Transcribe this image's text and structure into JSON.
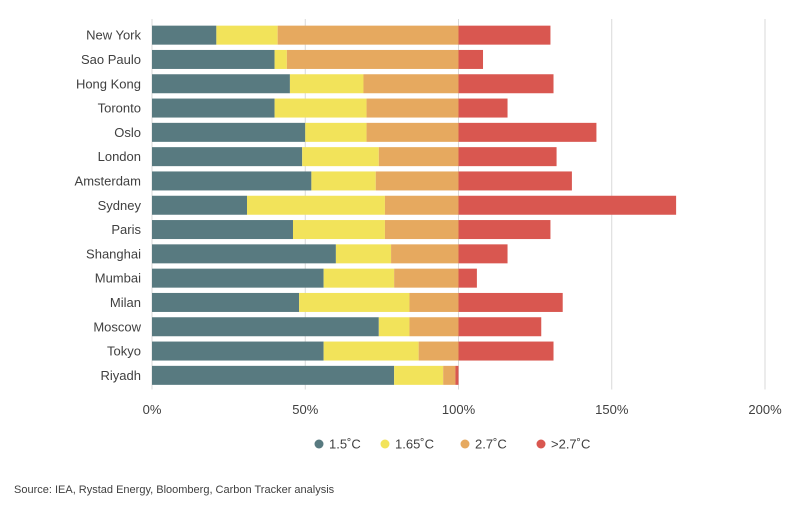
{
  "chart_data": {
    "type": "bar",
    "orientation": "horizontal",
    "stacked": true,
    "categories": [
      "New York",
      "Sao Paulo",
      "Hong Kong",
      "Toronto",
      "Oslo",
      "London",
      "Amsterdam",
      "Sydney",
      "Paris",
      "Shanghai",
      "Mumbai",
      "Milan",
      "Moscow",
      "Tokyo",
      "Riyadh"
    ],
    "series": [
      {
        "name": "1.5˚C",
        "color": "#587a80",
        "values": [
          21,
          40,
          45,
          40,
          50,
          49,
          52,
          31,
          46,
          60,
          56,
          48,
          74,
          56,
          79
        ]
      },
      {
        "name": "1.65˚C",
        "color": "#f2e35a",
        "values": [
          20,
          4,
          24,
          30,
          20,
          25,
          21,
          45,
          30,
          18,
          23,
          36,
          10,
          31,
          16
        ]
      },
      {
        "name": "2.7˚C",
        "color": "#e6a95f",
        "values": [
          59,
          56,
          31,
          30,
          30,
          26,
          27,
          24,
          24,
          22,
          21,
          16,
          16,
          13,
          4
        ]
      },
      {
        "name": ">2.7˚C",
        "color": "#d95750",
        "values": [
          30,
          8,
          31,
          16,
          45,
          32,
          37,
          71,
          30,
          16,
          6,
          34,
          27,
          31,
          1
        ]
      }
    ],
    "xticks": [
      "0%",
      "50%",
      "100%",
      "150%",
      "200%"
    ],
    "xlim": [
      0,
      200
    ],
    "grid": "vertical",
    "legend_position": "bottom"
  },
  "source_text": "Source: IEA, Rystad Energy, Bloomberg, Carbon Tracker analysis"
}
